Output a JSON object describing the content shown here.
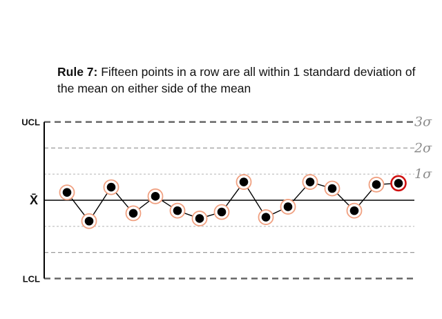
{
  "title": {
    "rule": "Rule 7:",
    "text": "Fifteen points in a row are all within 1 standard deviation of the mean on either side of the mean"
  },
  "chart_data": {
    "type": "line",
    "y_unit": "sigma",
    "ylim": [
      -3,
      3
    ],
    "center_label": "X̄",
    "limit_labels": {
      "upper": "UCL",
      "lower": "LCL"
    },
    "sigma_labels": [
      "3σ",
      "2σ",
      "1σ"
    ],
    "x": [
      1,
      2,
      3,
      4,
      5,
      6,
      7,
      8,
      9,
      10,
      11,
      12,
      13,
      14,
      15,
      16
    ],
    "values": [
      0.3,
      -0.8,
      0.5,
      -0.5,
      0.15,
      -0.4,
      -0.7,
      -0.45,
      0.7,
      -0.65,
      -0.25,
      0.7,
      0.45,
      -0.4,
      0.6,
      0.65
    ],
    "highlighted_points": [
      16
    ],
    "colors": {
      "point": "#000000",
      "ring": "#f0a080",
      "highlight_ring": "#d01010",
      "limit_line": "#666666",
      "sigma_line": "#999999",
      "one_sigma_line": "#bbbbbb"
    }
  }
}
